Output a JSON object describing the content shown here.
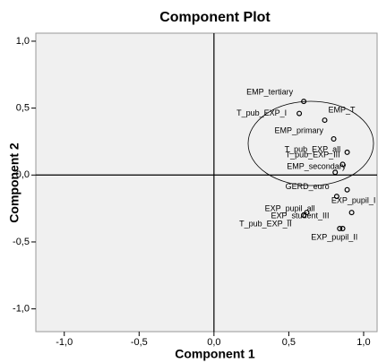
{
  "chart_data": {
    "type": "scatter",
    "title": "Component Plot",
    "x_label": "Component 1",
    "y_label": "Component 2",
    "x": [
      0.6,
      0.57,
      0.74,
      0.8,
      0.89,
      0.86,
      0.81,
      0.89,
      0.82,
      0.92,
      0.62,
      0.6,
      0.84,
      0.86
    ],
    "values": [
      0.55,
      0.46,
      0.41,
      0.27,
      0.17,
      0.08,
      0.02,
      -0.11,
      -0.16,
      -0.28,
      -0.28,
      -0.3,
      -0.4,
      -0.4
    ],
    "labels": [
      "EMP_tertiary",
      "T_pub_EXP_I",
      "EMP_T",
      "EMP_primary",
      "T_pub_EXP_all",
      "T_pub_EXP_III",
      "EMP_secondary",
      "GERD_euro",
      "EXP_pupil_I",
      "EXP_pupil_all",
      "EXP_student_III",
      "T_pub_EXP_II",
      "EXP_pupil_II",
      null
    ],
    "xlim": [
      -1.19,
      1.09
    ],
    "ylim": [
      -1.17,
      1.06
    ],
    "xticks": [
      {
        "value": -1.0,
        "label": "-1,0"
      },
      {
        "value": -0.5,
        "label": "-0,5"
      },
      {
        "value": 0.0,
        "label": "0,0"
      },
      {
        "value": 0.5,
        "label": "0,5"
      },
      {
        "value": 1.0,
        "label": "1,0"
      }
    ],
    "yticks": [
      {
        "value": -1.0,
        "label": "-1,0"
      },
      {
        "value": -0.5,
        "label": "-0,5"
      },
      {
        "value": 0.0,
        "label": "0,0"
      },
      {
        "value": 0.5,
        "label": "0,5"
      },
      {
        "value": 1.0,
        "label": "1,0"
      }
    ],
    "color": "#000000",
    "background": "#f0f0f0"
  }
}
